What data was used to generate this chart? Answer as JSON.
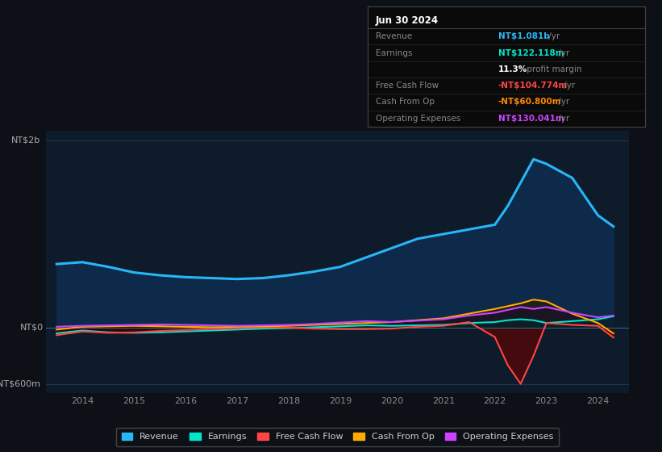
{
  "bg_color": "#0d1117",
  "plot_bg_color": "#0d1b2a",
  "title": "Jun 30 2024",
  "info_box_rows": [
    {
      "label": "Revenue",
      "value": "NT$1.081b /yr",
      "color": "#29b6f6"
    },
    {
      "label": "Earnings",
      "value": "NT$122.118m /yr",
      "color": "#00e5cc"
    },
    {
      "label": "",
      "value": "11.3% profit margin",
      "color": "#cccccc"
    },
    {
      "label": "Free Cash Flow",
      "value": "-NT$104.774m /yr",
      "color": "#ff4444"
    },
    {
      "label": "Cash From Op",
      "value": "-NT$60.800m /yr",
      "color": "#ff8800"
    },
    {
      "label": "Operating Expenses",
      "value": "NT$130.041m /yr",
      "color": "#cc44ff"
    }
  ],
  "ylim_lo": -700,
  "ylim_hi": 2100,
  "xlim_lo": 2013.3,
  "xlim_hi": 2024.6,
  "years": [
    2013.5,
    2014.0,
    2014.5,
    2015.0,
    2015.5,
    2016.0,
    2016.5,
    2017.0,
    2017.5,
    2018.0,
    2018.5,
    2019.0,
    2019.5,
    2020.0,
    2020.5,
    2021.0,
    2021.5,
    2022.0,
    2022.25,
    2022.5,
    2022.75,
    2023.0,
    2023.5,
    2024.0,
    2024.3
  ],
  "revenue": [
    680,
    700,
    650,
    590,
    560,
    540,
    530,
    520,
    530,
    560,
    600,
    650,
    750,
    850,
    950,
    1000,
    1050,
    1100,
    1300,
    1550,
    1800,
    1750,
    1600,
    1200,
    1081
  ],
  "earnings": [
    -60,
    -30,
    -50,
    -55,
    -50,
    -40,
    -30,
    -20,
    -10,
    -5,
    5,
    15,
    25,
    20,
    25,
    30,
    50,
    60,
    80,
    90,
    80,
    50,
    70,
    90,
    122
  ],
  "free_cash_flow": [
    -80,
    -40,
    -55,
    -50,
    -35,
    -25,
    -15,
    -5,
    5,
    0,
    -10,
    -15,
    -15,
    -10,
    10,
    20,
    60,
    -100,
    -400,
    -600,
    -300,
    50,
    30,
    20,
    -105
  ],
  "cash_from_op": [
    -20,
    10,
    15,
    20,
    15,
    10,
    5,
    10,
    15,
    20,
    30,
    40,
    50,
    60,
    80,
    100,
    150,
    200,
    230,
    260,
    300,
    280,
    150,
    50,
    -61
  ],
  "op_expenses": [
    10,
    20,
    25,
    30,
    35,
    30,
    25,
    20,
    25,
    30,
    40,
    55,
    70,
    60,
    75,
    90,
    130,
    160,
    190,
    220,
    200,
    220,
    160,
    110,
    130
  ],
  "line_colors": {
    "revenue": "#29b6f6",
    "earnings": "#00e5cc",
    "free_cash_flow": "#ff4444",
    "cash_from_op": "#ffaa00",
    "op_expenses": "#cc44ff"
  },
  "legend_items": [
    {
      "label": "Revenue",
      "color": "#29b6f6"
    },
    {
      "label": "Earnings",
      "color": "#00e5cc"
    },
    {
      "label": "Free Cash Flow",
      "color": "#ff4444"
    },
    {
      "label": "Cash From Op",
      "color": "#ffaa00"
    },
    {
      "label": "Operating Expenses",
      "color": "#cc44ff"
    }
  ]
}
